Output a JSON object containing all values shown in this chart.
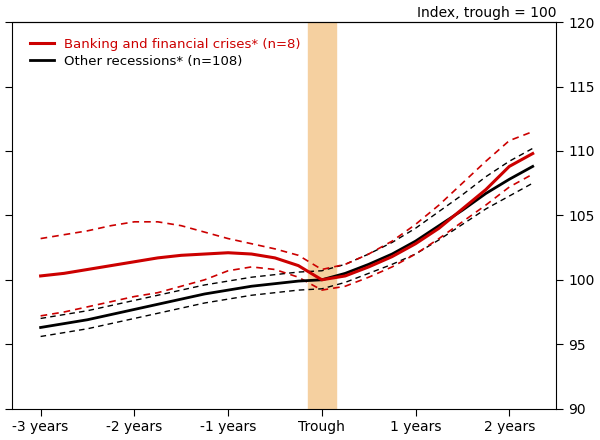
{
  "title": "Index, trough = 100",
  "x_ticks": [
    -3,
    -2,
    -1,
    0,
    1,
    2
  ],
  "x_tick_labels": [
    "-3 years",
    "-2 years",
    "-1 years",
    "Trough",
    "1 years",
    "2 years"
  ],
  "ylim": [
    90,
    120
  ],
  "y_ticks": [
    90,
    95,
    100,
    105,
    110,
    115,
    120
  ],
  "trough_shade_color": "#f5d0a0",
  "legend_banking_label": "Banking and financial crises* (n=8)",
  "legend_other_label": "Other recessions* (n=108)",
  "banking_color": "#cc0000",
  "other_color": "#000000",
  "x_points": [
    -3.0,
    -2.75,
    -2.5,
    -2.25,
    -2.0,
    -1.75,
    -1.5,
    -1.25,
    -1.0,
    -0.75,
    -0.5,
    -0.25,
    0.0,
    0.25,
    0.5,
    0.75,
    1.0,
    1.25,
    1.5,
    1.75,
    2.0,
    2.25
  ],
  "banking_mean": [
    100.3,
    100.5,
    100.8,
    101.1,
    101.4,
    101.7,
    101.9,
    102.0,
    102.1,
    102.0,
    101.7,
    101.1,
    100.0,
    100.3,
    101.0,
    101.8,
    102.8,
    104.0,
    105.5,
    107.0,
    108.8,
    109.8
  ],
  "banking_upper": [
    103.2,
    103.5,
    103.8,
    104.2,
    104.5,
    104.5,
    104.2,
    103.7,
    103.2,
    102.8,
    102.4,
    101.9,
    100.8,
    101.2,
    102.0,
    103.0,
    104.3,
    105.8,
    107.5,
    109.2,
    110.8,
    111.5
  ],
  "banking_lower": [
    97.2,
    97.5,
    97.9,
    98.3,
    98.7,
    99.0,
    99.5,
    100.0,
    100.7,
    101.0,
    100.8,
    100.2,
    99.2,
    99.5,
    100.2,
    101.0,
    102.0,
    103.2,
    104.5,
    105.8,
    107.2,
    108.2
  ],
  "other_mean": [
    96.3,
    96.6,
    96.9,
    97.3,
    97.7,
    98.1,
    98.5,
    98.9,
    99.2,
    99.5,
    99.7,
    99.9,
    100.0,
    100.5,
    101.2,
    102.0,
    103.0,
    104.2,
    105.4,
    106.7,
    107.8,
    108.8
  ],
  "other_upper": [
    97.0,
    97.3,
    97.6,
    98.0,
    98.4,
    98.8,
    99.2,
    99.6,
    99.9,
    100.2,
    100.4,
    100.6,
    100.7,
    101.2,
    102.0,
    102.9,
    104.0,
    105.3,
    106.6,
    108.0,
    109.2,
    110.2
  ],
  "other_lower": [
    95.6,
    95.9,
    96.2,
    96.6,
    97.0,
    97.4,
    97.8,
    98.2,
    98.5,
    98.8,
    99.0,
    99.2,
    99.3,
    99.8,
    100.5,
    101.2,
    102.0,
    103.1,
    104.3,
    105.5,
    106.5,
    107.5
  ]
}
